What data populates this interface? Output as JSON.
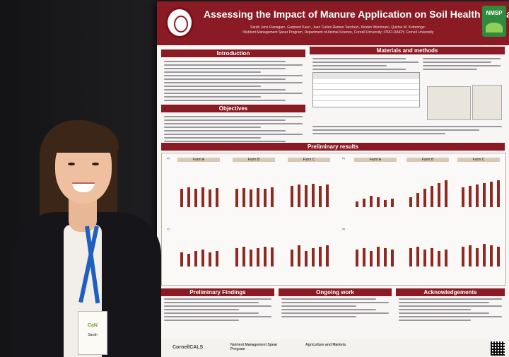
{
  "poster": {
    "title": "Assessing the Impact of Manure Application on Soil Health Indicators",
    "authors": "Sarah Jane Flanagan¹, Gurpreet Kaur¹, Juan Carlos Ramos Tanchez¹, Kirsten Workman², Quirine M. Ketterings¹",
    "affiliations": "¹Nutrient Management Spear Program, Department of Animal Science, Cornell University; ²PRO-DAIRY, Cornell University",
    "logo_right": "NMSP",
    "sections": {
      "introduction": "Introduction",
      "objectives": "Objectives",
      "materials": "Materials and methods",
      "results": "Preliminary results",
      "findings": "Preliminary Findings",
      "ongoing": "Ongoing work",
      "acknowledgements": "Acknowledgements"
    },
    "farms": [
      "Farm A",
      "Farm B",
      "Farm C"
    ],
    "panel_labels": [
      "a)",
      "b)",
      "c)",
      "d)"
    ],
    "logos": [
      "CornellCALS",
      "Nutrient Management Spear Program",
      "Agriculture and Markets"
    ]
  },
  "badge": {
    "org": "CaN",
    "name": "Sarah"
  },
  "colors": {
    "banner": "#8a1b24",
    "bar": "#8e2a22",
    "lanyard": "#1f5fbf"
  }
}
